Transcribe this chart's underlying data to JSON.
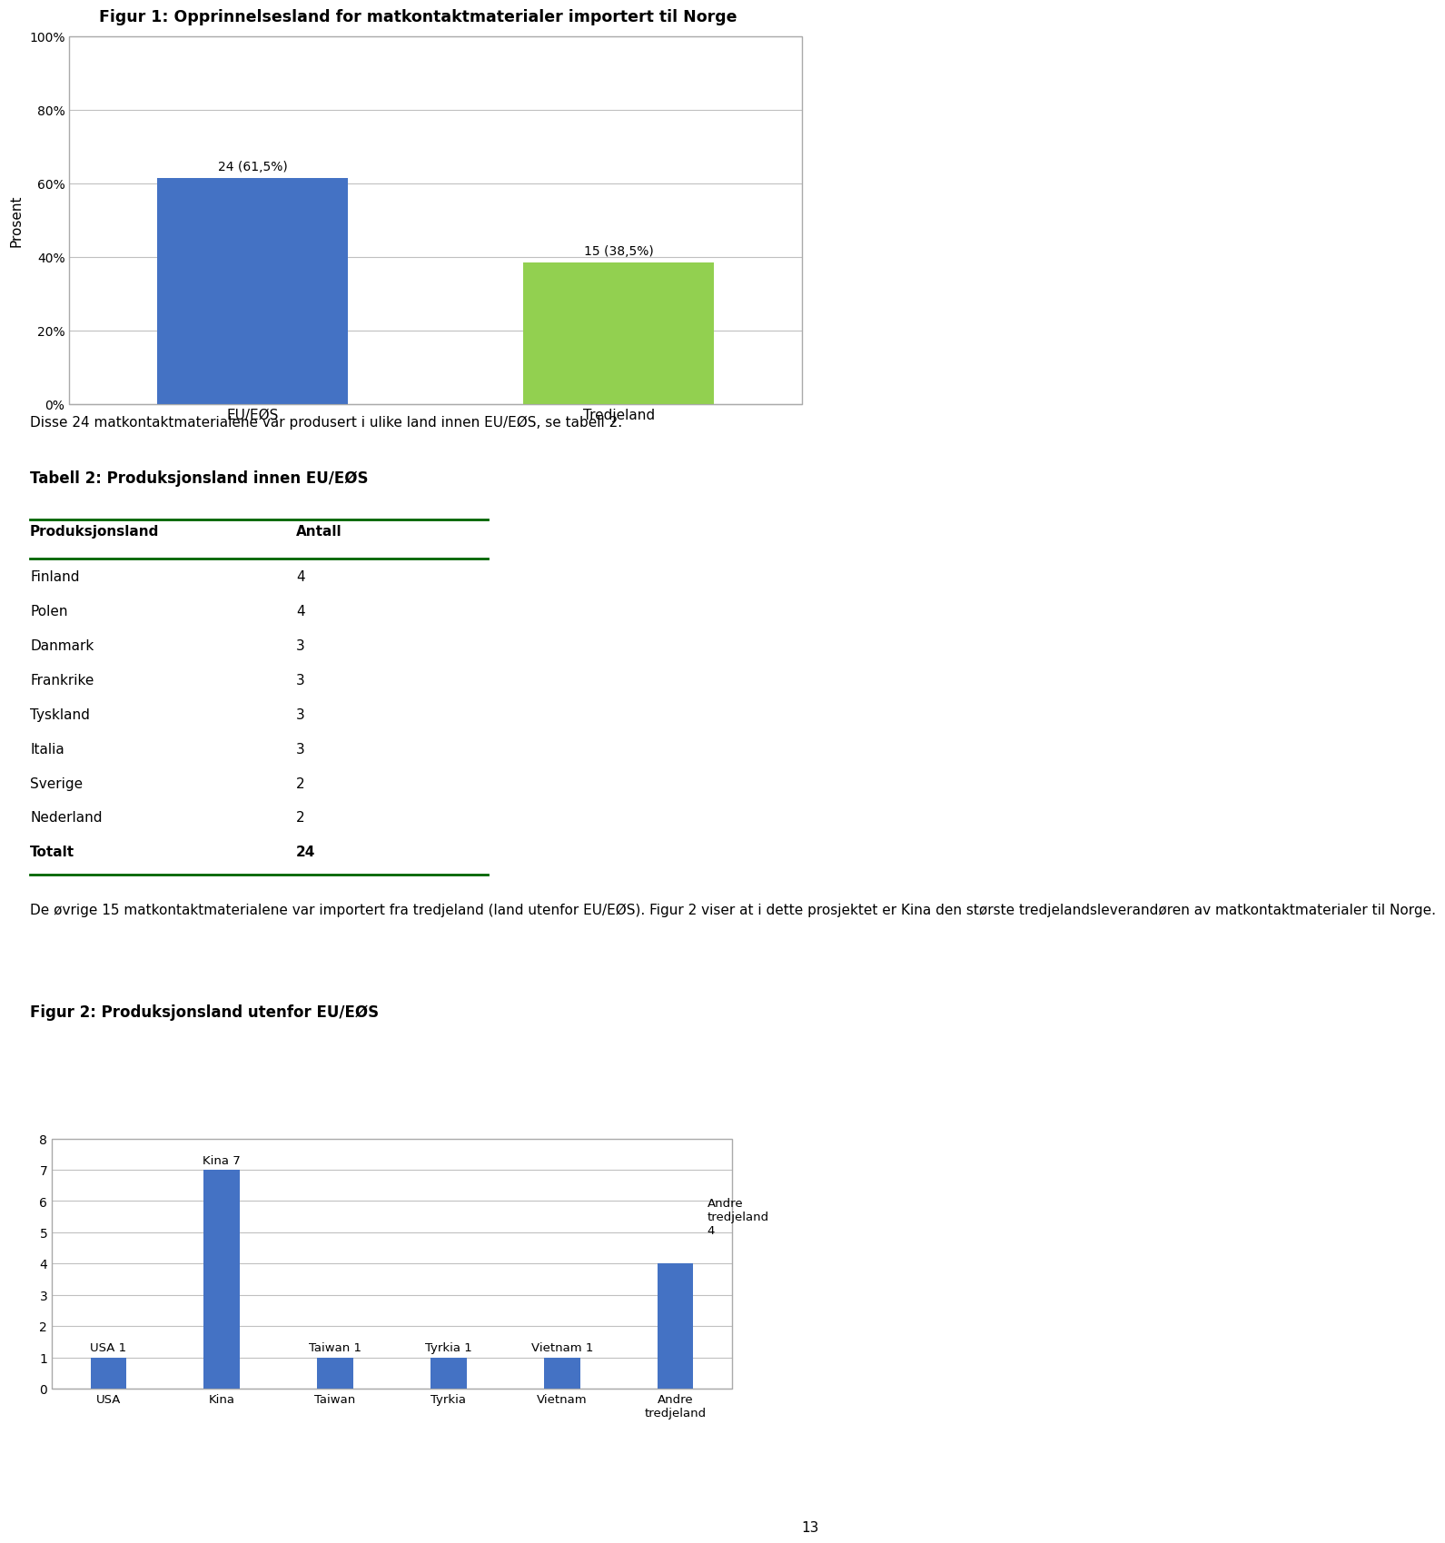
{
  "fig1_title": "Figur 1: Opprinnelsesland for matkontaktmaterialer importert til Norge",
  "fig1_categories": [
    "EU/EØS",
    "Tredjeland"
  ],
  "fig1_values": [
    61.5,
    38.5
  ],
  "fig1_labels": [
    "24 (61,5%)",
    "15 (38,5%)"
  ],
  "fig1_colors": [
    "#4472C4",
    "#92D050"
  ],
  "fig1_ylabel": "Prosent",
  "fig1_yticks": [
    0,
    20,
    40,
    60,
    80,
    100
  ],
  "fig1_ytick_labels": [
    "0%",
    "20%",
    "40%",
    "60%",
    "80%",
    "100%"
  ],
  "paragraph1": "Disse 24 matkontaktmaterialene var produsert i ulike land innen EU/EØS, se tabell 2.",
  "table_title": "Tabell 2: Produksjonsland innen EU/EØS",
  "table_col1_header": "Produksjonsland",
  "table_col2_header": "Antall",
  "table_rows": [
    [
      "Finland",
      "4"
    ],
    [
      "Polen",
      "4"
    ],
    [
      "Danmark",
      "3"
    ],
    [
      "Frankrike",
      "3"
    ],
    [
      "Tyskland",
      "3"
    ],
    [
      "Italia",
      "3"
    ],
    [
      "Sverige",
      "2"
    ],
    [
      "Nederland",
      "2"
    ],
    [
      "Totalt",
      "24"
    ]
  ],
  "paragraph2": "De øvrige 15 matkontaktmaterialene var importert fra tredjeland (land utenfor EU/EØS). Figur 2 viser at i dette prosjektet er Kina den største tredjelandsleverandøren av matkontaktmaterialer til Norge.",
  "fig2_title": "Figur 2: Produksjonsland utenfor EU/EØS",
  "fig2_categories": [
    "USA",
    "Kina",
    "Taiwan",
    "Tyrkia",
    "Vietnam",
    "Andre\ntredjeland"
  ],
  "fig2_values": [
    1,
    7,
    1,
    1,
    1,
    4
  ],
  "fig2_color": "#4472C4",
  "fig2_yticks": [
    0,
    1,
    2,
    3,
    4,
    5,
    6,
    7,
    8
  ],
  "page_number": "13",
  "background_color": "#FFFFFF",
  "text_color": "#000000",
  "table_header_color": "#006400",
  "grid_color": "#C0C0C0"
}
